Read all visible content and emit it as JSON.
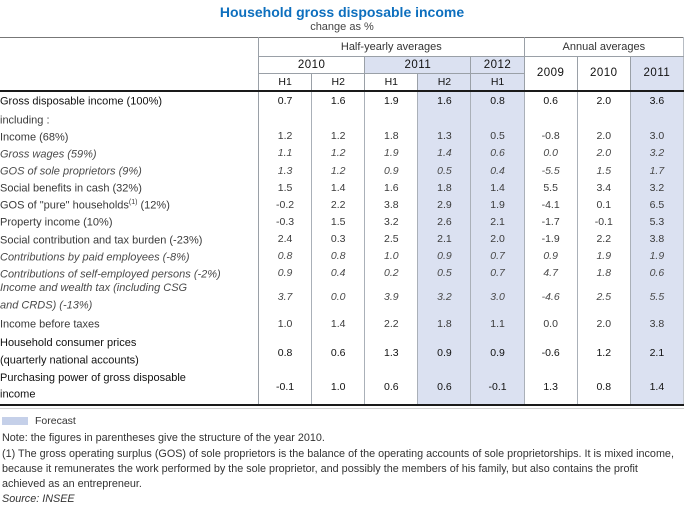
{
  "title": "Household gross disposable income",
  "subtitle": "change as %",
  "table": {
    "group_headers": [
      "Half-yearly averages",
      "Annual averages"
    ],
    "year_headers": [
      "2010",
      "2011",
      "2012",
      "2009",
      "2010",
      "2011"
    ],
    "half_headers": [
      "H1",
      "H2",
      "H1",
      "H2",
      "H1"
    ],
    "shaded_cols": [
      3,
      4,
      7
    ],
    "rows": [
      {
        "label": "Gross disposable income (100%)",
        "style": "bold",
        "values": [
          "0.7",
          "1.6",
          "1.9",
          "1.6",
          "0.8",
          "0.6",
          "2.0",
          "3.6"
        ]
      },
      {
        "label": "including :",
        "style": "normal",
        "values": [
          "",
          "",
          "",
          "",
          "",
          "",
          "",
          ""
        ]
      },
      {
        "label": "Income (68%)",
        "style": "normal",
        "values": [
          "1.2",
          "1.2",
          "1.8",
          "1.3",
          "0.5",
          "-0.8",
          "2.0",
          "3.0"
        ]
      },
      {
        "label": "Gross wages (59%)",
        "style": "italic",
        "values": [
          "1.1",
          "1.2",
          "1.9",
          "1.4",
          "0.6",
          "0.0",
          "2.0",
          "3.2"
        ]
      },
      {
        "label": "GOS of sole proprietors (9%)",
        "style": "italic",
        "values": [
          "1.3",
          "1.2",
          "0.9",
          "0.5",
          "0.4",
          "-5.5",
          "1.5",
          "1.7"
        ]
      },
      {
        "label": "Social benefits in cash (32%)",
        "style": "normal",
        "values": [
          "1.5",
          "1.4",
          "1.6",
          "1.8",
          "1.4",
          "5.5",
          "3.4",
          "3.2"
        ]
      },
      {
        "label": "GOS of \"pure\" households",
        "sup": "(1)",
        "tail": " (12%)",
        "style": "normal",
        "values": [
          "-0.2",
          "2.2",
          "3.8",
          "2.9",
          "1.9",
          "-4.1",
          "0.1",
          "6.5"
        ]
      },
      {
        "label": "Property income (10%)",
        "style": "normal",
        "values": [
          "-0.3",
          "1.5",
          "3.2",
          "2.6",
          "2.1",
          "-1.7",
          "-0.1",
          "5.3"
        ]
      },
      {
        "label": "Social contribution and tax burden (-23%)",
        "style": "normal",
        "values": [
          "2.4",
          "0.3",
          "2.5",
          "2.1",
          "2.0",
          "-1.9",
          "2.2",
          "3.8"
        ]
      },
      {
        "label": "Contributions by paid employees (-8%)",
        "style": "italic",
        "values": [
          "0.8",
          "0.8",
          "1.0",
          "0.9",
          "0.7",
          "0.9",
          "1.9",
          "1.9"
        ]
      },
      {
        "label": "Contributions of self-employed persons (-2%)",
        "style": "italic",
        "values": [
          "0.9",
          "0.4",
          "0.2",
          "0.5",
          "0.7",
          "4.7",
          "1.8",
          "0.6"
        ]
      },
      {
        "label": "Income and wealth tax (including CSG\nand CRDS) (-13%)",
        "style": "italic",
        "values": [
          "3.7",
          "0.0",
          "3.9",
          "3.2",
          "3.0",
          "-4.6",
          "2.5",
          "5.5"
        ]
      },
      {
        "label": "Income before taxes",
        "style": "normal",
        "values": [
          "1.0",
          "1.4",
          "2.2",
          "1.8",
          "1.1",
          "0.0",
          "2.0",
          "3.8"
        ]
      },
      {
        "label": "Household consumer prices\n(quarterly national accounts)",
        "style": "bold",
        "values": [
          "0.8",
          "0.6",
          "1.3",
          "0.9",
          "0.9",
          "-0.6",
          "1.2",
          "2.1"
        ]
      },
      {
        "label": "Purchasing power of gross disposable\nincome",
        "style": "bold",
        "values": [
          "-0.1",
          "1.0",
          "0.6",
          "0.6",
          "-0.1",
          "1.3",
          "0.8",
          "1.4"
        ]
      }
    ]
  },
  "legend": {
    "label": "Forecast",
    "swatch_color": "#c5d0e9"
  },
  "notes": [
    "Note: the figures in parentheses give the structure of the year 2010.",
    "(1) The gross operating surplus (GOS) of sole proprietors is the balance of the operating accounts of sole proprietorships. It is mixed income, because it remunerates the work performed by the sole proprietor, and possibly the members of his family, but also contains the profit achieved as an entrepreneur."
  ],
  "source": "Source: INSEE",
  "colors": {
    "title_blue": "#0d6fbe",
    "forecast_shading": "#dbe1f1",
    "grid_line": "#9aa0a7"
  }
}
